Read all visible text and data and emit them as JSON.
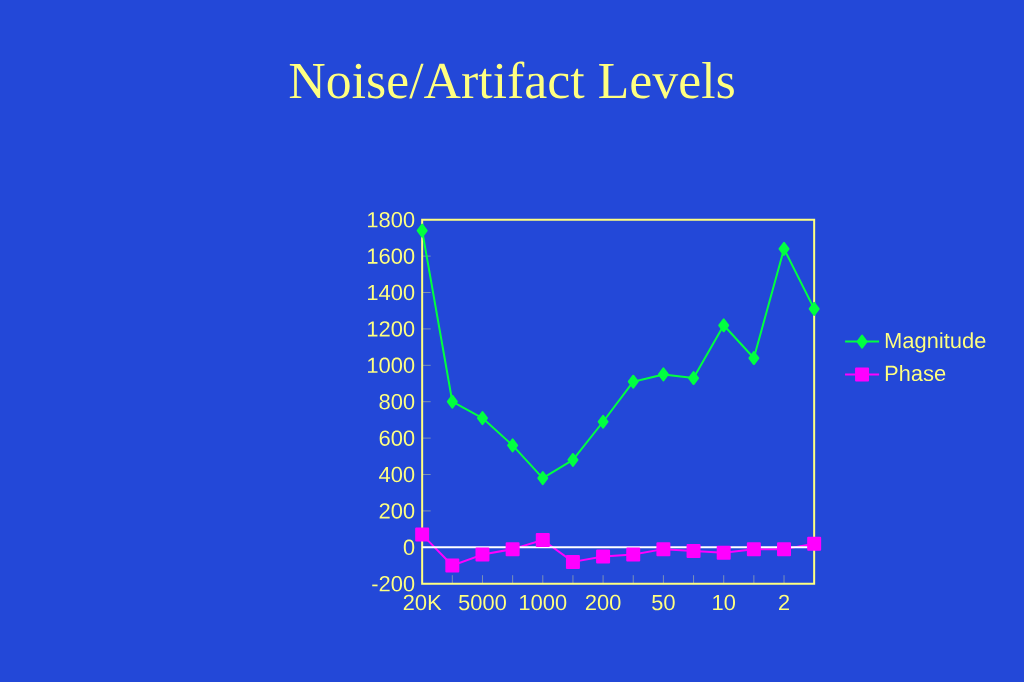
{
  "chart_data": {
    "type": "line",
    "title": "Noise/Artifact Levels",
    "categories": [
      "20K",
      null,
      "5000",
      null,
      "1000",
      null,
      "200",
      null,
      "50",
      null,
      "10",
      null,
      "2",
      null
    ],
    "series": [
      {
        "name": "Magnitude",
        "color": "#00ff40",
        "marker": "diamond",
        "values": [
          1740,
          800,
          710,
          560,
          380,
          480,
          690,
          910,
          950,
          930,
          1220,
          1040,
          1640,
          1310
        ]
      },
      {
        "name": "Phase",
        "color": "#ff00ff",
        "marker": "square",
        "values": [
          70,
          -100,
          -40,
          -10,
          40,
          -80,
          -50,
          -40,
          -10,
          -20,
          -30,
          -10,
          -10,
          20
        ]
      }
    ],
    "ylim": [
      -200,
      1800
    ],
    "yticks": [
      -200,
      0,
      200,
      400,
      600,
      800,
      1000,
      1200,
      1400,
      1600,
      1800
    ],
    "ref_lines": [
      {
        "axis": "y",
        "value": 0,
        "color": "#ffffff"
      }
    ],
    "legend": "right",
    "line_style": "solid"
  }
}
